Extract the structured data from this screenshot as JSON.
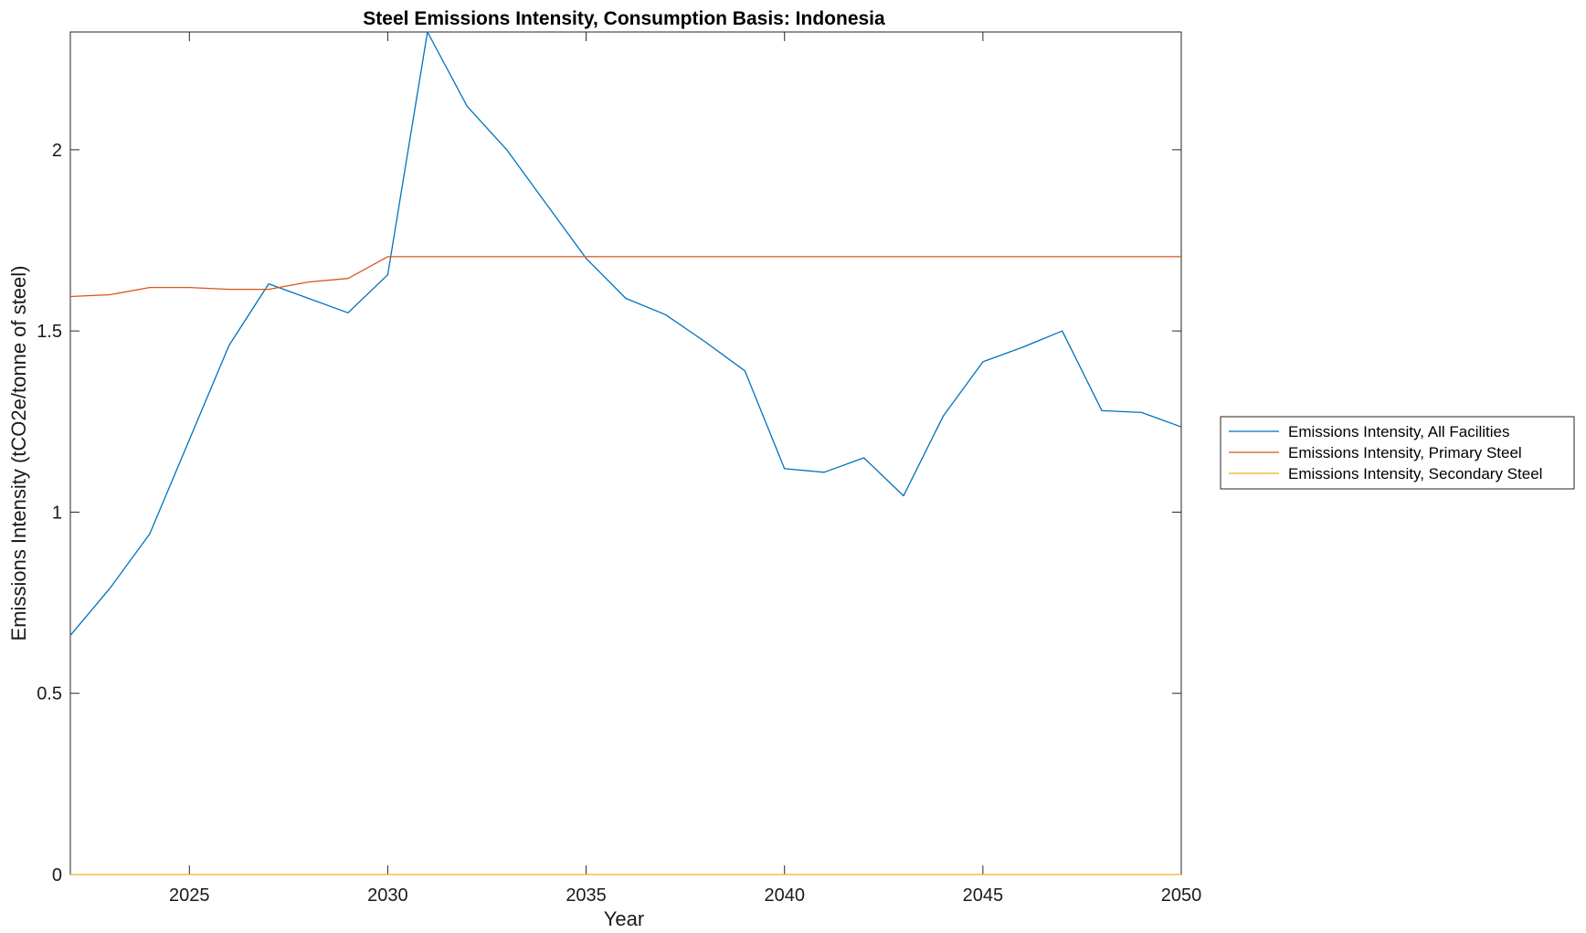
{
  "chart_data": {
    "type": "line",
    "title": "Steel Emissions Intensity, Consumption Basis: Indonesia",
    "xlabel": "Year",
    "ylabel": "Emissions Intensity (tCO2e/tonne of steel)",
    "xlim": [
      2022,
      2050
    ],
    "ylim": [
      0,
      2.325
    ],
    "x_ticks": [
      2025,
      2030,
      2035,
      2040,
      2045,
      2050
    ],
    "y_ticks": [
      0,
      0.5,
      1,
      1.5,
      2
    ],
    "y_tick_labels": [
      "0",
      "0.5",
      "1",
      "1.5",
      "2"
    ],
    "grid": false,
    "legend_position": "outside-right",
    "x": [
      2022,
      2023,
      2024,
      2025,
      2026,
      2027,
      2028,
      2029,
      2030,
      2031,
      2032,
      2033,
      2034,
      2035,
      2036,
      2037,
      2038,
      2039,
      2040,
      2041,
      2042,
      2043,
      2044,
      2045,
      2046,
      2047,
      2048,
      2049,
      2050
    ],
    "series": [
      {
        "name": "Emissions Intensity, All Facilities",
        "color": "#0072BD",
        "values": [
          0.66,
          0.79,
          0.94,
          1.2,
          1.46,
          1.63,
          1.59,
          1.55,
          1.655,
          2.325,
          2.12,
          2.0,
          1.85,
          1.7,
          1.59,
          1.545,
          1.47,
          1.39,
          1.12,
          1.11,
          1.15,
          1.045,
          1.265,
          1.415,
          1.455,
          1.5,
          1.28,
          1.275,
          1.235
        ]
      },
      {
        "name": "Emissions Intensity, Primary Steel",
        "color": "#D95319",
        "values": [
          1.595,
          1.6,
          1.62,
          1.62,
          1.615,
          1.615,
          1.635,
          1.645,
          1.705,
          1.705,
          1.705,
          1.705,
          1.705,
          1.705,
          1.705,
          1.705,
          1.705,
          1.705,
          1.705,
          1.705,
          1.705,
          1.705,
          1.705,
          1.705,
          1.705,
          1.705,
          1.705,
          1.705,
          1.705
        ]
      },
      {
        "name": "Emissions Intensity, Secondary Steel",
        "color": "#EDB120",
        "values": [
          0,
          0,
          0,
          0,
          0,
          0,
          0,
          0,
          0,
          0,
          0,
          0,
          0,
          0,
          0,
          0,
          0,
          0,
          0,
          0,
          0,
          0,
          0,
          0,
          0,
          0,
          0,
          0,
          0
        ]
      }
    ]
  }
}
